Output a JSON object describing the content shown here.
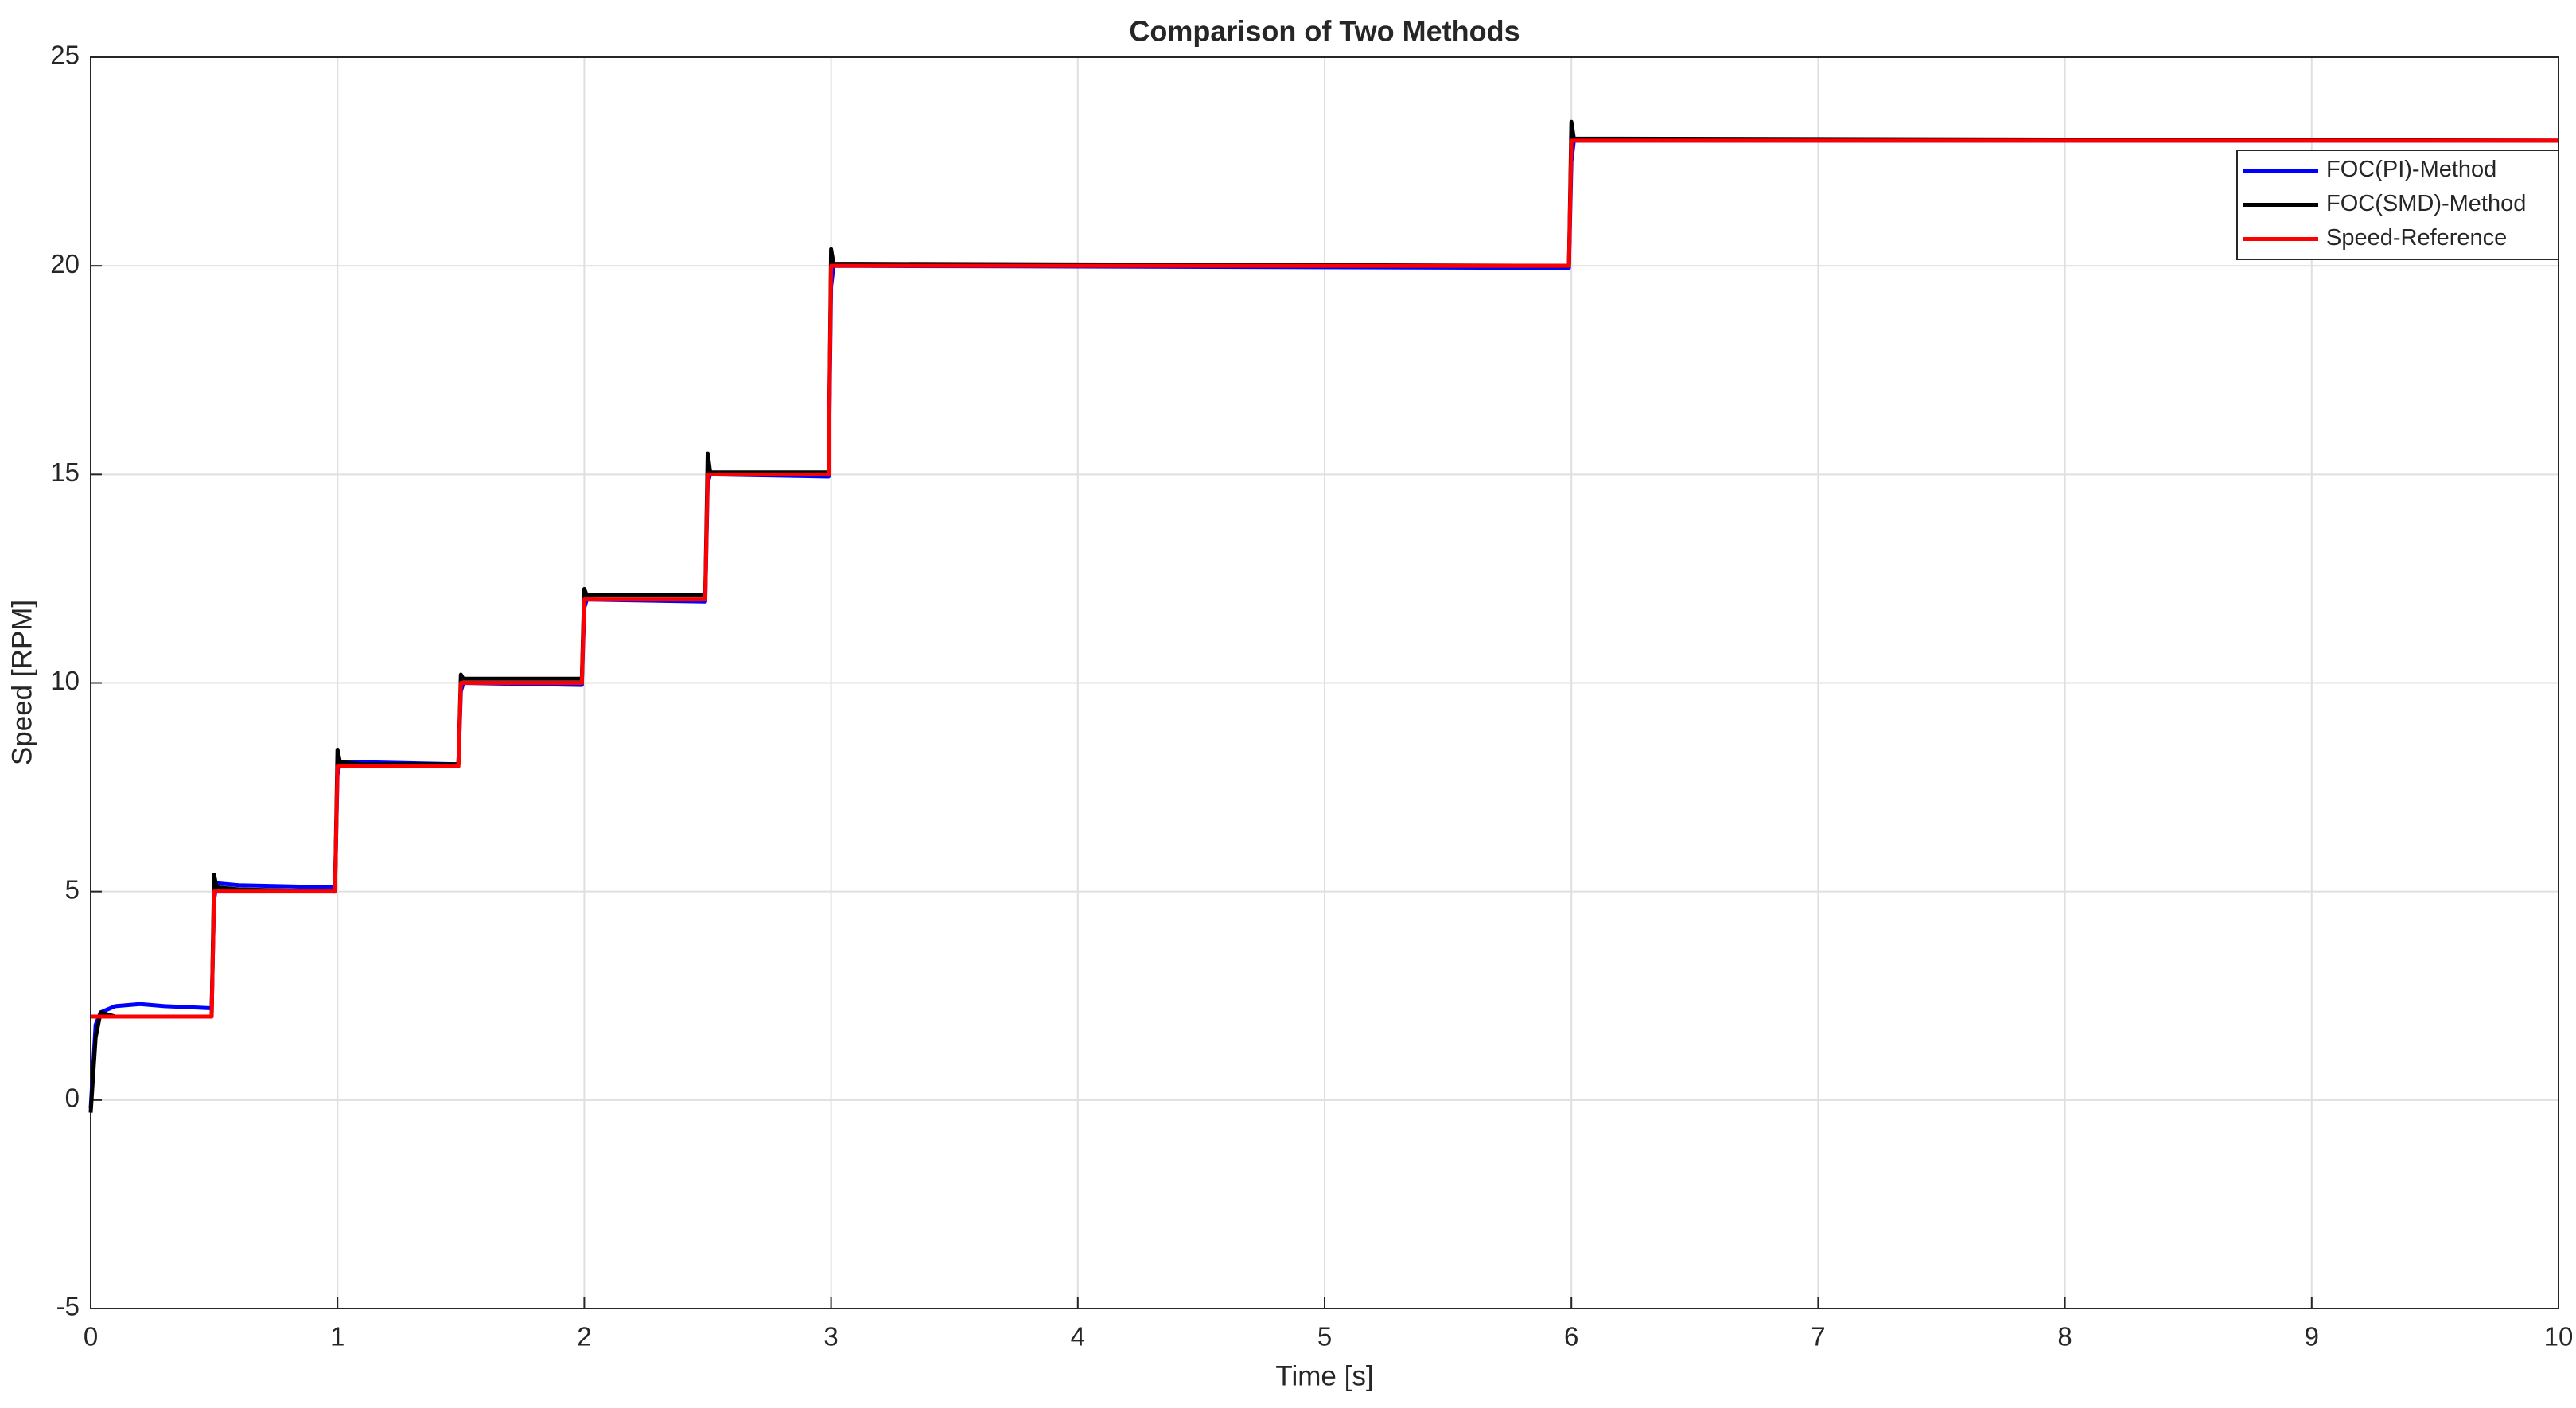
{
  "chart_data": {
    "type": "line",
    "title": "Comparison of Two Methods",
    "x_label": "Time [s]",
    "y_label": "Speed [RPM]",
    "x": [
      0,
      0.02,
      0.04,
      0.1,
      0.2,
      0.3,
      0.49,
      0.5,
      0.51,
      0.6,
      0.99,
      1.0,
      1.01,
      1.1,
      1.49,
      1.5,
      1.51,
      1.99,
      2.0,
      2.01,
      2.49,
      2.5,
      2.51,
      2.99,
      3.0,
      3.01,
      5.99,
      6.0,
      6.01,
      10
    ],
    "series": [
      {
        "name": "FOC(PI)-Method",
        "color": "#0000ff",
        "values": [
          -0.2,
          1.8,
          2.1,
          2.25,
          2.3,
          2.25,
          2.2,
          4.8,
          5.2,
          5.15,
          5.1,
          7.8,
          8.1,
          8.1,
          8.05,
          9.8,
          10.0,
          9.95,
          11.8,
          12.0,
          11.95,
          14.8,
          15.0,
          14.95,
          19.5,
          20.0,
          19.95,
          22.5,
          23.0,
          23.0
        ]
      },
      {
        "name": "FOC(SMD)-Method",
        "color": "#000000",
        "values": [
          -0.3,
          1.5,
          2.1,
          2.0,
          2.0,
          2.0,
          2.0,
          5.4,
          5.1,
          5.05,
          5.0,
          8.4,
          8.1,
          8.05,
          8.05,
          10.2,
          10.1,
          10.1,
          12.25,
          12.1,
          12.1,
          15.5,
          15.05,
          15.05,
          20.4,
          20.05,
          20.0,
          23.45,
          23.05,
          23.0
        ]
      },
      {
        "name": "Speed-Reference",
        "color": "#ff0000",
        "values": [
          2,
          2,
          2,
          2,
          2,
          2,
          2,
          5,
          5,
          5,
          5,
          8,
          8,
          8,
          8,
          10,
          10,
          10,
          12,
          12,
          12,
          15,
          15,
          15,
          20,
          20,
          20,
          23,
          23,
          23
        ]
      }
    ],
    "xlim": [
      0,
      10
    ],
    "xticks": [
      0,
      1,
      2,
      3,
      4,
      5,
      6,
      7,
      8,
      9,
      10
    ],
    "ylim": [
      -5,
      25
    ],
    "yticks": [
      -5,
      0,
      5,
      10,
      15,
      20,
      25
    ],
    "grid": true,
    "legend": "northeast"
  }
}
